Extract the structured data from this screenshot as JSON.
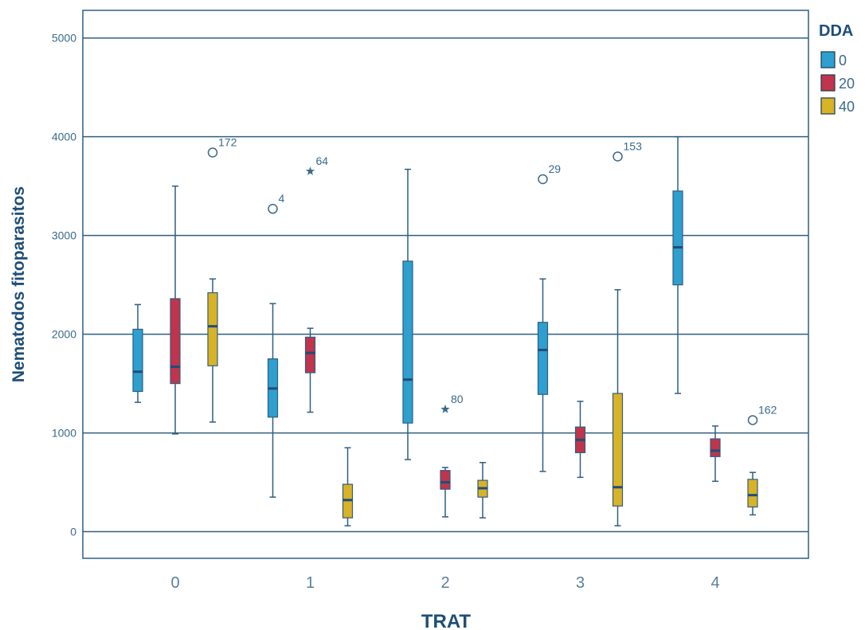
{
  "chart_data": {
    "type": "box",
    "xlabel": "TRAT",
    "ylabel": "Nematodos fitoparasitos",
    "ylim": [
      -270,
      5280
    ],
    "y_ticks": [
      0,
      1000,
      2000,
      3000,
      4000,
      5000
    ],
    "categories": [
      "0",
      "1",
      "2",
      "3",
      "4"
    ],
    "grid": "horizontal",
    "legend": {
      "title": "DDA",
      "position": "right",
      "entries": [
        {
          "label": "0",
          "color": "#2e9fcf"
        },
        {
          "label": "20",
          "color": "#c0344c"
        },
        {
          "label": "40",
          "color": "#d8b227"
        }
      ]
    },
    "series": [
      {
        "name": "0",
        "color": "#2e9fcf",
        "boxes": [
          {
            "category": "0",
            "min": 1310,
            "q1": 1420,
            "median": 1620,
            "q3": 2050,
            "max": 2300
          },
          {
            "category": "1",
            "min": 350,
            "q1": 1160,
            "median": 1450,
            "q3": 1750,
            "max": 2310
          },
          {
            "category": "2",
            "min": 730,
            "q1": 1100,
            "median": 1540,
            "q3": 2740,
            "max": 3670
          },
          {
            "category": "3",
            "min": 610,
            "q1": 1390,
            "median": 1840,
            "q3": 2120,
            "max": 2560
          },
          {
            "category": "4",
            "min": 1400,
            "q1": 2500,
            "median": 2880,
            "q3": 3450,
            "max": 4000
          }
        ]
      },
      {
        "name": "20",
        "color": "#c0344c",
        "boxes": [
          {
            "category": "0",
            "min": 990,
            "q1": 1500,
            "median": 1670,
            "q3": 2360,
            "max": 3500
          },
          {
            "category": "1",
            "min": 1210,
            "q1": 1610,
            "median": 1810,
            "q3": 1970,
            "max": 2060
          },
          {
            "category": "2",
            "min": 150,
            "q1": 430,
            "median": 500,
            "q3": 620,
            "max": 650
          },
          {
            "category": "3",
            "min": 550,
            "q1": 800,
            "median": 930,
            "q3": 1060,
            "max": 1320
          },
          {
            "category": "4",
            "min": 510,
            "q1": 760,
            "median": 820,
            "q3": 940,
            "max": 1070
          }
        ]
      },
      {
        "name": "40",
        "color": "#d8b227",
        "boxes": [
          {
            "category": "0",
            "min": 1110,
            "q1": 1680,
            "median": 2080,
            "q3": 2420,
            "max": 2560
          },
          {
            "category": "1",
            "min": 60,
            "q1": 140,
            "median": 320,
            "q3": 480,
            "max": 850
          },
          {
            "category": "2",
            "min": 140,
            "q1": 350,
            "median": 440,
            "q3": 520,
            "max": 700
          },
          {
            "category": "3",
            "min": 60,
            "q1": 260,
            "median": 450,
            "q3": 1400,
            "max": 2450
          },
          {
            "category": "4",
            "min": 170,
            "q1": 250,
            "median": 370,
            "q3": 530,
            "max": 600
          }
        ]
      }
    ],
    "outliers": [
      {
        "category": "0",
        "series": "40",
        "value": 3840,
        "marker": "circle",
        "label": "172"
      },
      {
        "category": "1",
        "series": "0",
        "value": 3270,
        "marker": "circle",
        "label": "4"
      },
      {
        "category": "1",
        "series": "20",
        "value": 3650,
        "marker": "star",
        "label": "64"
      },
      {
        "category": "2",
        "series": "20",
        "value": 1240,
        "marker": "star",
        "label": "80"
      },
      {
        "category": "3",
        "series": "0",
        "value": 3570,
        "marker": "circle",
        "label": "29"
      },
      {
        "category": "3",
        "series": "40",
        "value": 3800,
        "marker": "circle",
        "label": "153"
      },
      {
        "category": "4",
        "series": "40",
        "value": 1130,
        "marker": "circle",
        "label": "162"
      }
    ]
  }
}
